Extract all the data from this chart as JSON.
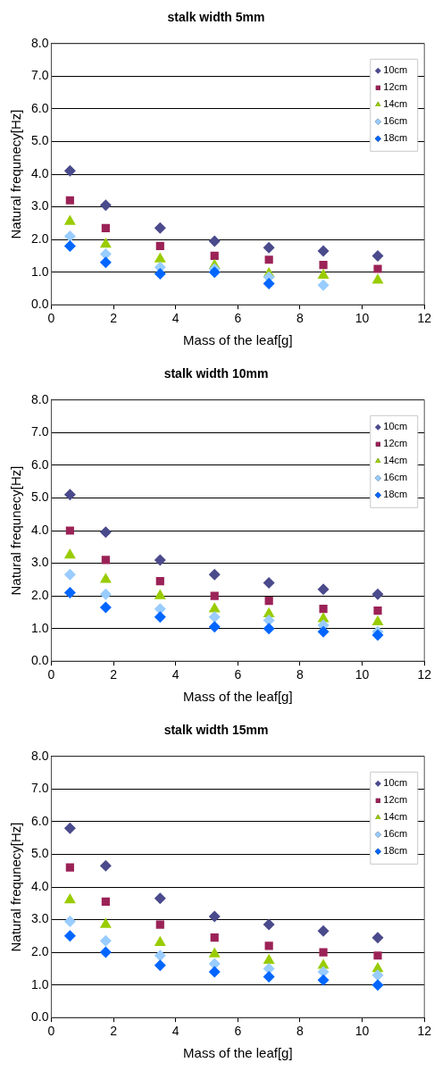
{
  "chart_data": [
    {
      "type": "scatter",
      "title": "stalk width 5mm",
      "xlabel": "Mass of the leaf[g]",
      "ylabel": "Natural frequnecy[Hz]",
      "x": [
        0.6,
        1.75,
        3.5,
        5.25,
        7.0,
        8.75,
        10.5
      ],
      "series": [
        {
          "name": "10cm",
          "color": "#4a4a8c",
          "marker": "diamond",
          "values": [
            4.1,
            3.05,
            2.35,
            1.95,
            1.75,
            1.65,
            1.5
          ]
        },
        {
          "name": "12cm",
          "color": "#9b2257",
          "marker": "square",
          "values": [
            3.2,
            2.35,
            1.8,
            1.5,
            1.38,
            1.22,
            1.1
          ]
        },
        {
          "name": "14cm",
          "color": "#99cc00",
          "marker": "triangle",
          "values": [
            2.55,
            1.85,
            1.4,
            1.2,
            0.95,
            0.9,
            0.75
          ]
        },
        {
          "name": "16cm",
          "color": "#99ccff",
          "marker": "diamond",
          "values": [
            2.1,
            1.55,
            1.15,
            1.1,
            0.85,
            0.6,
            null
          ]
        },
        {
          "name": "18cm",
          "color": "#0066ff",
          "marker": "diamond",
          "values": [
            1.8,
            1.3,
            0.95,
            1.0,
            0.65,
            null,
            null
          ]
        }
      ],
      "xlim": [
        0,
        12
      ],
      "xticks": [
        0,
        2,
        4,
        6,
        8,
        10,
        12
      ],
      "ylim": [
        0,
        8
      ],
      "yticks": [
        {
          "value": 0,
          "label": "0.0"
        },
        {
          "value": 1,
          "label": "1.0"
        },
        {
          "value": 2,
          "label": "2.0"
        },
        {
          "value": 3,
          "label": "3.0"
        },
        {
          "value": 4,
          "label": "4.0"
        },
        {
          "value": 5,
          "label": "5.0"
        },
        {
          "value": 6,
          "label": "6.0"
        },
        {
          "value": 7,
          "label": "7.0"
        },
        {
          "value": 8,
          "label": "8.0"
        }
      ],
      "grid": "y",
      "legend": "top right"
    },
    {
      "type": "scatter",
      "title": "stalk width 10mm",
      "xlabel": "Mass of the leaf[g]",
      "ylabel": "Natural frequnecy[Hz]",
      "x": [
        0.6,
        1.75,
        3.5,
        5.25,
        7.0,
        8.75,
        10.5
      ],
      "series": [
        {
          "name": "10cm",
          "color": "#4a4a8c",
          "marker": "diamond",
          "values": [
            5.1,
            3.95,
            3.1,
            2.65,
            2.4,
            2.2,
            2.05
          ]
        },
        {
          "name": "12cm",
          "color": "#9b2257",
          "marker": "square",
          "values": [
            4.0,
            3.1,
            2.45,
            2.0,
            1.85,
            1.6,
            1.55
          ]
        },
        {
          "name": "14cm",
          "color": "#99cc00",
          "marker": "triangle",
          "values": [
            3.25,
            2.5,
            2.0,
            1.6,
            1.45,
            1.3,
            1.2
          ]
        },
        {
          "name": "16cm",
          "color": "#99ccff",
          "marker": "diamond",
          "values": [
            2.65,
            2.05,
            1.6,
            1.35,
            1.25,
            1.1,
            0.9
          ]
        },
        {
          "name": "18cm",
          "color": "#0066ff",
          "marker": "diamond",
          "values": [
            2.1,
            1.65,
            1.35,
            1.05,
            1.0,
            0.9,
            0.8
          ]
        }
      ],
      "xlim": [
        0,
        12
      ],
      "xticks": [
        0,
        2,
        4,
        6,
        8,
        10,
        12
      ],
      "ylim": [
        0,
        8
      ],
      "yticks": [
        {
          "value": 0,
          "label": "0.0"
        },
        {
          "value": 1,
          "label": "1.0"
        },
        {
          "value": 2,
          "label": "2.0"
        },
        {
          "value": 3,
          "label": "3.0"
        },
        {
          "value": 4,
          "label": "4.0"
        },
        {
          "value": 5,
          "label": "5.0"
        },
        {
          "value": 6,
          "label": "6.0"
        },
        {
          "value": 7,
          "label": "7.0"
        },
        {
          "value": 8,
          "label": "8.0"
        }
      ],
      "grid": "y",
      "legend": "top right"
    },
    {
      "type": "scatter",
      "title": "stalk width 15mm",
      "xlabel": "Mass of the leaf[g]",
      "ylabel": "Natural frequnecy[Hz]",
      "x": [
        0.6,
        1.75,
        3.5,
        5.25,
        7.0,
        8.75,
        10.5
      ],
      "series": [
        {
          "name": "10cm",
          "color": "#4a4a8c",
          "marker": "diamond",
          "values": [
            5.8,
            4.65,
            3.65,
            3.1,
            2.85,
            2.65,
            2.45
          ]
        },
        {
          "name": "12cm",
          "color": "#9b2257",
          "marker": "square",
          "values": [
            4.6,
            3.55,
            2.85,
            2.45,
            2.2,
            2.0,
            1.9
          ]
        },
        {
          "name": "14cm",
          "color": "#99cc00",
          "marker": "triangle",
          "values": [
            3.6,
            2.85,
            2.3,
            1.95,
            1.75,
            1.6,
            1.5
          ]
        },
        {
          "name": "16cm",
          "color": "#99ccff",
          "marker": "diamond",
          "values": [
            2.95,
            2.35,
            1.9,
            1.65,
            1.5,
            1.4,
            1.3
          ]
        },
        {
          "name": "18cm",
          "color": "#0066ff",
          "marker": "diamond",
          "values": [
            2.5,
            2.0,
            1.6,
            1.4,
            1.25,
            1.15,
            1.0
          ]
        }
      ],
      "xlim": [
        0,
        12
      ],
      "xticks": [
        0,
        2,
        4,
        6,
        8,
        10,
        12
      ],
      "ylim": [
        0,
        8
      ],
      "yticks": [
        {
          "value": 0,
          "label": "0.0"
        },
        {
          "value": 1,
          "label": "1.0"
        },
        {
          "value": 2,
          "label": "2.0"
        },
        {
          "value": 3,
          "label": "3.0"
        },
        {
          "value": 4,
          "label": "4.0"
        },
        {
          "value": 5,
          "label": "5.0"
        },
        {
          "value": 6,
          "label": "6.0"
        },
        {
          "value": 7,
          "label": "7.0"
        },
        {
          "value": 8,
          "label": "8.0"
        }
      ],
      "grid": "y",
      "legend": "top right"
    }
  ]
}
